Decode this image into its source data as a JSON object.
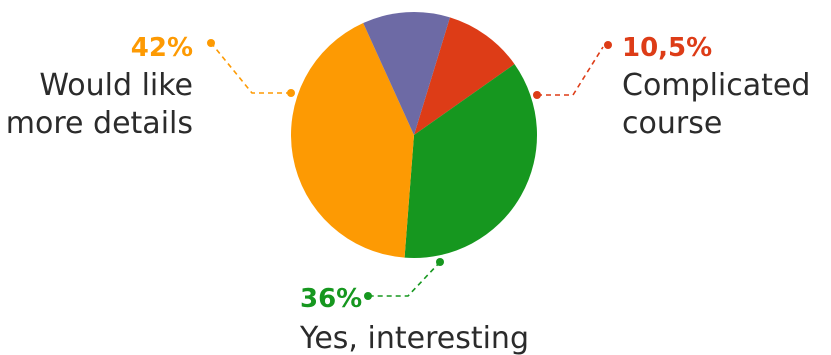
{
  "chart_data": {
    "type": "pie",
    "title": "",
    "slices": [
      {
        "id": "complicated",
        "label_lines": [
          "Complicated",
          "course"
        ],
        "percent_label": "10,5%",
        "value": 10.5,
        "color": "#dd3c17"
      },
      {
        "id": "interesting",
        "label_lines": [
          "Yes, interesting"
        ],
        "percent_label": "36%",
        "value": 36,
        "color": "#16971f"
      },
      {
        "id": "details",
        "label_lines": [
          "Would like",
          "more details"
        ],
        "percent_label": "42%",
        "value": 42,
        "color": "#fd9a03"
      },
      {
        "id": "other",
        "label_lines": [],
        "percent_label": "",
        "value": 11.5,
        "color": "#6d6aa5"
      }
    ],
    "start_angle_deg": 17,
    "label_text_color": "#2b2b2b"
  }
}
